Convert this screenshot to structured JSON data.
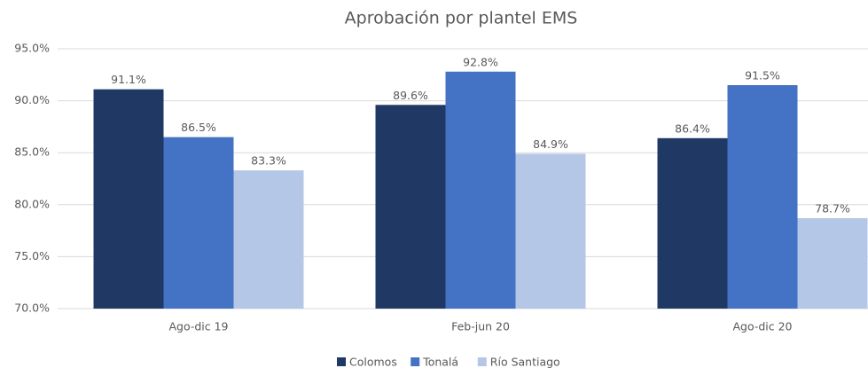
{
  "chart_data": {
    "type": "bar",
    "title": "Aprobación por plantel EMS",
    "categories": [
      "Ago-dic 19",
      "Feb-jun 20",
      "Ago-dic 20"
    ],
    "series": [
      {
        "name": "Colomos",
        "color": "#203864",
        "values": [
          91.1,
          89.6,
          86.4
        ],
        "value_labels": [
          "91.1%",
          "89.6%",
          "86.4%"
        ]
      },
      {
        "name": "Tonalá",
        "color": "#4472c4",
        "values": [
          86.5,
          92.8,
          91.5
        ],
        "value_labels": [
          "86.5%",
          "92.8%",
          "91.5%"
        ]
      },
      {
        "name": "Río Santiago",
        "color": "#b4c7e7",
        "values": [
          83.3,
          84.9,
          78.7
        ],
        "value_labels": [
          "83.3%",
          "84.9%",
          "78.7%"
        ]
      }
    ],
    "ylim": [
      70,
      95
    ],
    "yticks": [
      {
        "value": 70,
        "label": "70.0%"
      },
      {
        "value": 75,
        "label": "75.0%"
      },
      {
        "value": 80,
        "label": "80.0%"
      },
      {
        "value": 85,
        "label": "85.0%"
      },
      {
        "value": 90,
        "label": "90.0%"
      },
      {
        "value": 95,
        "label": "95.0%"
      }
    ],
    "grid": true,
    "legend": "bottom"
  }
}
